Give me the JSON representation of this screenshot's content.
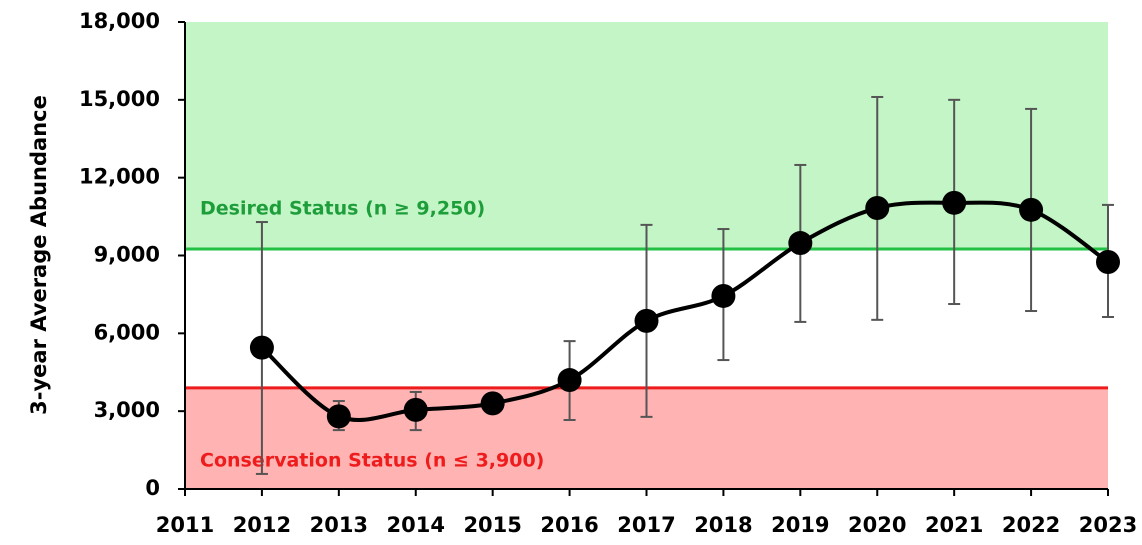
{
  "chart_data": {
    "type": "line",
    "y_label": "3-year Average Abundance",
    "x": [
      2012,
      2013,
      2014,
      2015,
      2016,
      2017,
      2018,
      2019,
      2020,
      2021,
      2022,
      2023
    ],
    "series": [
      {
        "name": "3-year Average Abundance",
        "color": "#000000",
        "values": [
          5450,
          2800,
          3050,
          3300,
          4200,
          6480,
          7440,
          9480,
          10830,
          11030,
          10760,
          8750
        ],
        "lower": [
          580,
          2270,
          2270,
          null,
          2660,
          2780,
          4970,
          6440,
          6520,
          7130,
          6860,
          6630
        ],
        "upper": [
          10290,
          3390,
          3740,
          null,
          5700,
          10180,
          10020,
          12490,
          15110,
          15000,
          14650,
          10950
        ]
      }
    ],
    "thresholds": [
      {
        "label": "Desired Status (n ≥ 9,250)",
        "value": 9250,
        "color": "#22c043",
        "text_color": "#1e9e3a",
        "fill": "#c3f5c6",
        "side": "above"
      },
      {
        "label": "Conservation Status (n ≤ 3,900)",
        "value": 3900,
        "color": "#ee1c1c",
        "text_color": "#ee1c1c",
        "fill": "#ffb3b3",
        "side": "below"
      }
    ],
    "xlim": [
      2011,
      2023
    ],
    "xticks": [
      2011,
      2012,
      2013,
      2014,
      2015,
      2016,
      2017,
      2018,
      2019,
      2020,
      2021,
      2022,
      2023
    ],
    "ylim": [
      0,
      18000
    ],
    "yticks": [
      0,
      {
        "value": 3000,
        "label": "3,000"
      },
      {
        "value": 6000,
        "label": "6,000"
      },
      {
        "value": 9000,
        "label": "9,000"
      },
      {
        "value": 12000,
        "label": "12,000"
      },
      {
        "value": 15000,
        "label": "15,000"
      },
      {
        "value": 18000,
        "label": "18,000"
      }
    ]
  }
}
